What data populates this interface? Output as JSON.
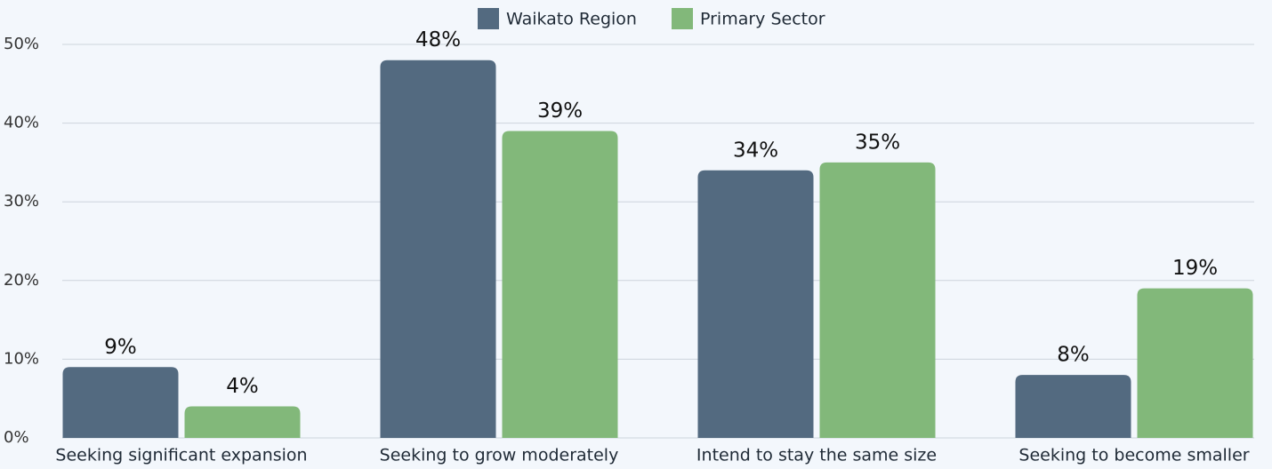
{
  "chart_data": {
    "type": "bar",
    "categories": [
      "Seeking significant expansion",
      "Seeking to grow moderately",
      "Intend to stay the same size",
      "Seeking to become smaller"
    ],
    "series": [
      {
        "name": "Waikato Region",
        "color": "#536a80",
        "values": [
          9,
          48,
          34,
          8
        ],
        "value_labels": [
          "9%",
          "48%",
          "34%",
          "8%"
        ]
      },
      {
        "name": "Primary Sector",
        "color": "#82b87a",
        "values": [
          4,
          39,
          35,
          19
        ],
        "value_labels": [
          "4%",
          "39%",
          "35%",
          "19%"
        ]
      }
    ],
    "ylim": [
      0,
      50
    ],
    "yticks": [
      {
        "value": 0,
        "label": "0%"
      },
      {
        "value": 10,
        "label": "10%"
      },
      {
        "value": 20,
        "label": "20%"
      },
      {
        "value": 30,
        "label": "30%"
      },
      {
        "value": 40,
        "label": "40%"
      },
      {
        "value": 50,
        "label": "50%"
      }
    ],
    "grid": true,
    "legend": "top"
  }
}
